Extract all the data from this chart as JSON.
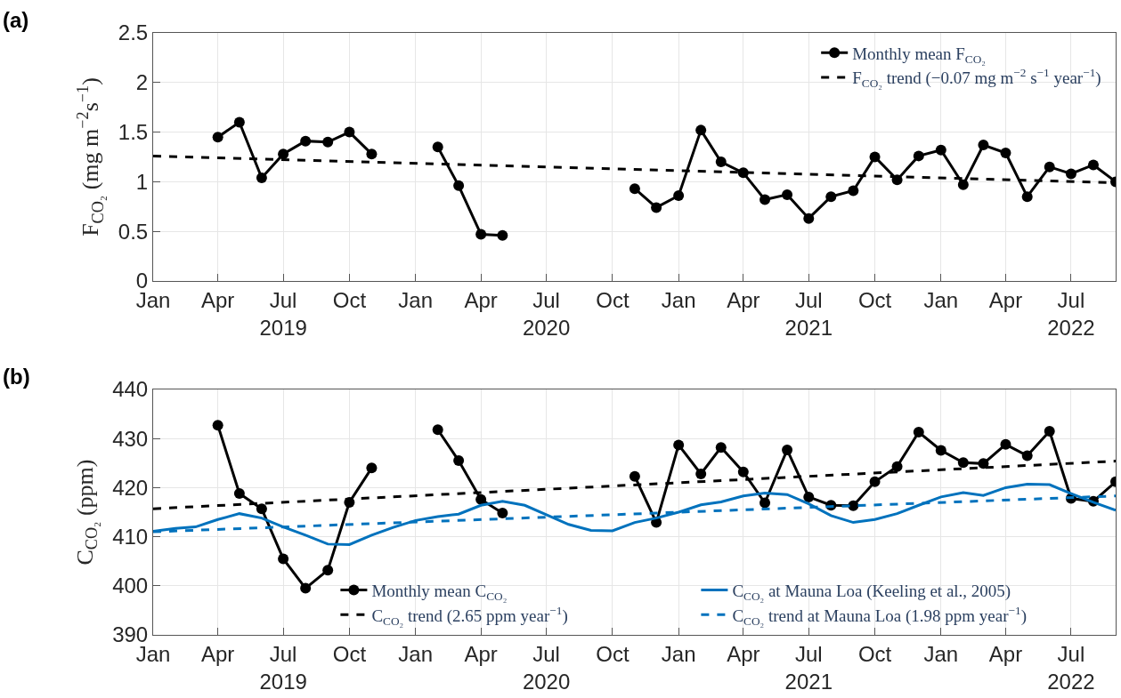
{
  "chart_data": [
    {
      "type": "line",
      "annotations": [
        "(a)"
      ],
      "ylabel": "F$_{CO₂}$ (mg m$^{−2}$s$^{−1}$)",
      "x": [
        "2019-04-01",
        "2019-05-01",
        "2019-06-01",
        "2019-07-01",
        "2019-08-01",
        "2019-09-01",
        "2019-10-01",
        "2019-11-01",
        "2019-12-01",
        "2020-01-01",
        "2020-02-01",
        "2020-03-01",
        "2020-04-01",
        "2020-05-01",
        "2020-06-01",
        "2020-07-01",
        "2020-08-01",
        "2020-09-01",
        "2020-10-01",
        "2020-11-01",
        "2020-12-01",
        "2021-01-01",
        "2021-02-01",
        "2021-03-01",
        "2021-04-01",
        "2021-05-01",
        "2021-06-01",
        "2021-07-01",
        "2021-08-01",
        "2021-09-01",
        "2021-10-01",
        "2021-11-01",
        "2021-12-01",
        "2022-01-01",
        "2022-02-01",
        "2022-03-01",
        "2022-04-01",
        "2022-05-01",
        "2022-06-01",
        "2022-07-01",
        "2022-08-01",
        "2022-09-01"
      ],
      "series": [
        {
          "name": "Monthly mean F$_{CO₂}$",
          "color": "#000000",
          "marker": "circle",
          "line_style": "solid",
          "values": [
            1.45,
            1.6,
            1.04,
            1.28,
            1.41,
            1.4,
            1.5,
            1.28,
            null,
            null,
            1.35,
            0.96,
            0.47,
            0.46,
            null,
            null,
            null,
            null,
            null,
            0.93,
            0.74,
            0.86,
            1.52,
            1.2,
            1.09,
            0.82,
            0.87,
            0.63,
            0.85,
            0.91,
            1.25,
            1.02,
            1.26,
            1.32,
            0.97,
            1.37,
            1.29,
            0.85,
            1.15,
            1.08,
            1.17,
            1.0
          ]
        },
        {
          "name": "F$_{CO₂}$ trend (−0.07 mg m$^{−2}$ s$^{−1}$ year$^{−1}$)",
          "color": "#000000",
          "marker": "none",
          "line_style": "dashed",
          "x": [
            "2019-01-01",
            "2022-09-01"
          ],
          "values": [
            1.26,
            0.99
          ]
        }
      ],
      "xlim": [
        "2019-01-01",
        "2022-09-01"
      ],
      "xticks": [
        {
          "value": "2019-01-01",
          "label": "Jan"
        },
        {
          "value": "2019-04-01",
          "label": "Apr"
        },
        {
          "value": "2019-07-01",
          "label": "Jul\n2019"
        },
        {
          "value": "2019-10-01",
          "label": "Oct"
        },
        {
          "value": "2020-01-01",
          "label": "Jan"
        },
        {
          "value": "2020-04-01",
          "label": "Apr"
        },
        {
          "value": "2020-07-01",
          "label": "Jul\n2020"
        },
        {
          "value": "2020-10-01",
          "label": "Oct"
        },
        {
          "value": "2021-01-01",
          "label": "Jan"
        },
        {
          "value": "2021-04-01",
          "label": "Apr"
        },
        {
          "value": "2021-07-01",
          "label": "Jul\n2021"
        },
        {
          "value": "2021-10-01",
          "label": "Oct"
        },
        {
          "value": "2022-01-01",
          "label": "Jan"
        },
        {
          "value": "2022-04-01",
          "label": "Apr"
        },
        {
          "value": "2022-07-01",
          "label": "Jul\n2022"
        }
      ],
      "ylim": [
        0,
        2.5
      ],
      "yticks": [
        0,
        0.5,
        1,
        1.5,
        2,
        2.5
      ],
      "grid": true,
      "legend": "top right"
    },
    {
      "type": "line",
      "annotations": [
        "(b)"
      ],
      "ylabel": "C$_{CO₂}$ (ppm)",
      "x": [
        "2019-04-01",
        "2019-05-01",
        "2019-06-01",
        "2019-07-01",
        "2019-08-01",
        "2019-09-01",
        "2019-10-01",
        "2019-11-01",
        "2019-12-01",
        "2020-01-01",
        "2020-02-01",
        "2020-03-01",
        "2020-04-01",
        "2020-05-01",
        "2020-06-01",
        "2020-07-01",
        "2020-08-01",
        "2020-09-01",
        "2020-10-01",
        "2020-11-01",
        "2020-12-01",
        "2021-01-01",
        "2021-02-01",
        "2021-03-01",
        "2021-04-01",
        "2021-05-01",
        "2021-06-01",
        "2021-07-01",
        "2021-08-01",
        "2021-09-01",
        "2021-10-01",
        "2021-11-01",
        "2021-12-01",
        "2022-01-01",
        "2022-02-01",
        "2022-03-01",
        "2022-04-01",
        "2022-05-01",
        "2022-06-01",
        "2022-07-01",
        "2022-08-01",
        "2022-09-01"
      ],
      "series": [
        {
          "name": "Monthly mean C$_{CO₂}$",
          "color": "#000000",
          "marker": "circle",
          "line_style": "solid",
          "values": [
            432.7,
            418.8,
            415.7,
            405.5,
            399.5,
            403.2,
            417.0,
            424.0,
            null,
            null,
            431.8,
            425.5,
            417.6,
            414.8,
            null,
            null,
            null,
            null,
            null,
            422.3,
            412.9,
            428.7,
            422.8,
            428.2,
            423.2,
            416.9,
            427.7,
            418.1,
            416.4,
            416.3,
            421.2,
            424.3,
            431.3,
            427.6,
            425.1,
            424.9,
            428.8,
            426.5,
            431.5,
            417.8,
            417.2,
            421.2
          ]
        },
        {
          "name": "C$_{CO₂}$ at Mauna Loa (Keeling et al., 2005)",
          "color": "#0072bd",
          "marker": "none",
          "line_style": "solid",
          "x": [
            "2019-01-01",
            "2019-02-01",
            "2019-03-01",
            "2019-04-01",
            "2019-05-01",
            "2019-06-01",
            "2019-07-01",
            "2019-08-01",
            "2019-09-01",
            "2019-10-01",
            "2019-11-01",
            "2019-12-01",
            "2020-01-01",
            "2020-02-01",
            "2020-03-01",
            "2020-04-01",
            "2020-05-01",
            "2020-06-01",
            "2020-07-01",
            "2020-08-01",
            "2020-09-01",
            "2020-10-01",
            "2020-11-01",
            "2020-12-01",
            "2021-01-01",
            "2021-02-01",
            "2021-03-01",
            "2021-04-01",
            "2021-05-01",
            "2021-06-01",
            "2021-07-01",
            "2021-08-01",
            "2021-09-01",
            "2021-10-01",
            "2021-11-01",
            "2021-12-01",
            "2022-01-01",
            "2022-02-01",
            "2022-03-01",
            "2022-04-01",
            "2022-05-01",
            "2022-06-01",
            "2022-07-01",
            "2022-08-01",
            "2022-09-01"
          ],
          "values": [
            411.1,
            411.7,
            412.0,
            413.5,
            414.7,
            413.8,
            412.0,
            410.3,
            408.5,
            408.4,
            410.3,
            411.9,
            413.3,
            414.1,
            414.6,
            416.4,
            417.2,
            416.4,
            414.5,
            412.5,
            411.3,
            411.2,
            412.9,
            413.8,
            415.0,
            416.5,
            417.1,
            418.3,
            418.9,
            418.6,
            416.7,
            414.3,
            412.9,
            413.5,
            414.7,
            416.4,
            418.1,
            419.0,
            418.4,
            420.0,
            420.7,
            420.6,
            418.8,
            417.0,
            415.4
          ]
        },
        {
          "name": "C$_{CO₂}$ trend (2.65 ppm year$^{−1}$)",
          "color": "#000000",
          "marker": "none",
          "line_style": "dashed",
          "x": [
            "2019-01-01",
            "2022-09-01"
          ],
          "values": [
            415.7,
            425.4
          ]
        },
        {
          "name": "C$_{CO₂}$ trend at Mauna Loa (1.98 ppm year$^{−1}$)",
          "color": "#0072bd",
          "marker": "none",
          "line_style": "dashed",
          "x": [
            "2019-01-01",
            "2022-09-01"
          ],
          "values": [
            411.0,
            418.3
          ]
        }
      ],
      "xlim": [
        "2019-01-01",
        "2022-09-01"
      ],
      "xticks": [
        {
          "value": "2019-01-01",
          "label": "Jan"
        },
        {
          "value": "2019-04-01",
          "label": "Apr"
        },
        {
          "value": "2019-07-01",
          "label": "Jul\n2019"
        },
        {
          "value": "2019-10-01",
          "label": "Oct"
        },
        {
          "value": "2020-01-01",
          "label": "Jan"
        },
        {
          "value": "2020-04-01",
          "label": "Apr"
        },
        {
          "value": "2020-07-01",
          "label": "Jul\n2020"
        },
        {
          "value": "2020-10-01",
          "label": "Oct"
        },
        {
          "value": "2021-01-01",
          "label": "Jan"
        },
        {
          "value": "2021-04-01",
          "label": "Apr"
        },
        {
          "value": "2021-07-01",
          "label": "Jul\n2021"
        },
        {
          "value": "2021-10-01",
          "label": "Oct"
        },
        {
          "value": "2022-01-01",
          "label": "Jan"
        },
        {
          "value": "2022-04-01",
          "label": "Apr"
        },
        {
          "value": "2022-07-01",
          "label": "Jul\n2022"
        }
      ],
      "ylim": [
        390,
        440
      ],
      "yticks": [
        390,
        400,
        410,
        420,
        430,
        440
      ],
      "grid": true,
      "legend": "bottom"
    }
  ]
}
